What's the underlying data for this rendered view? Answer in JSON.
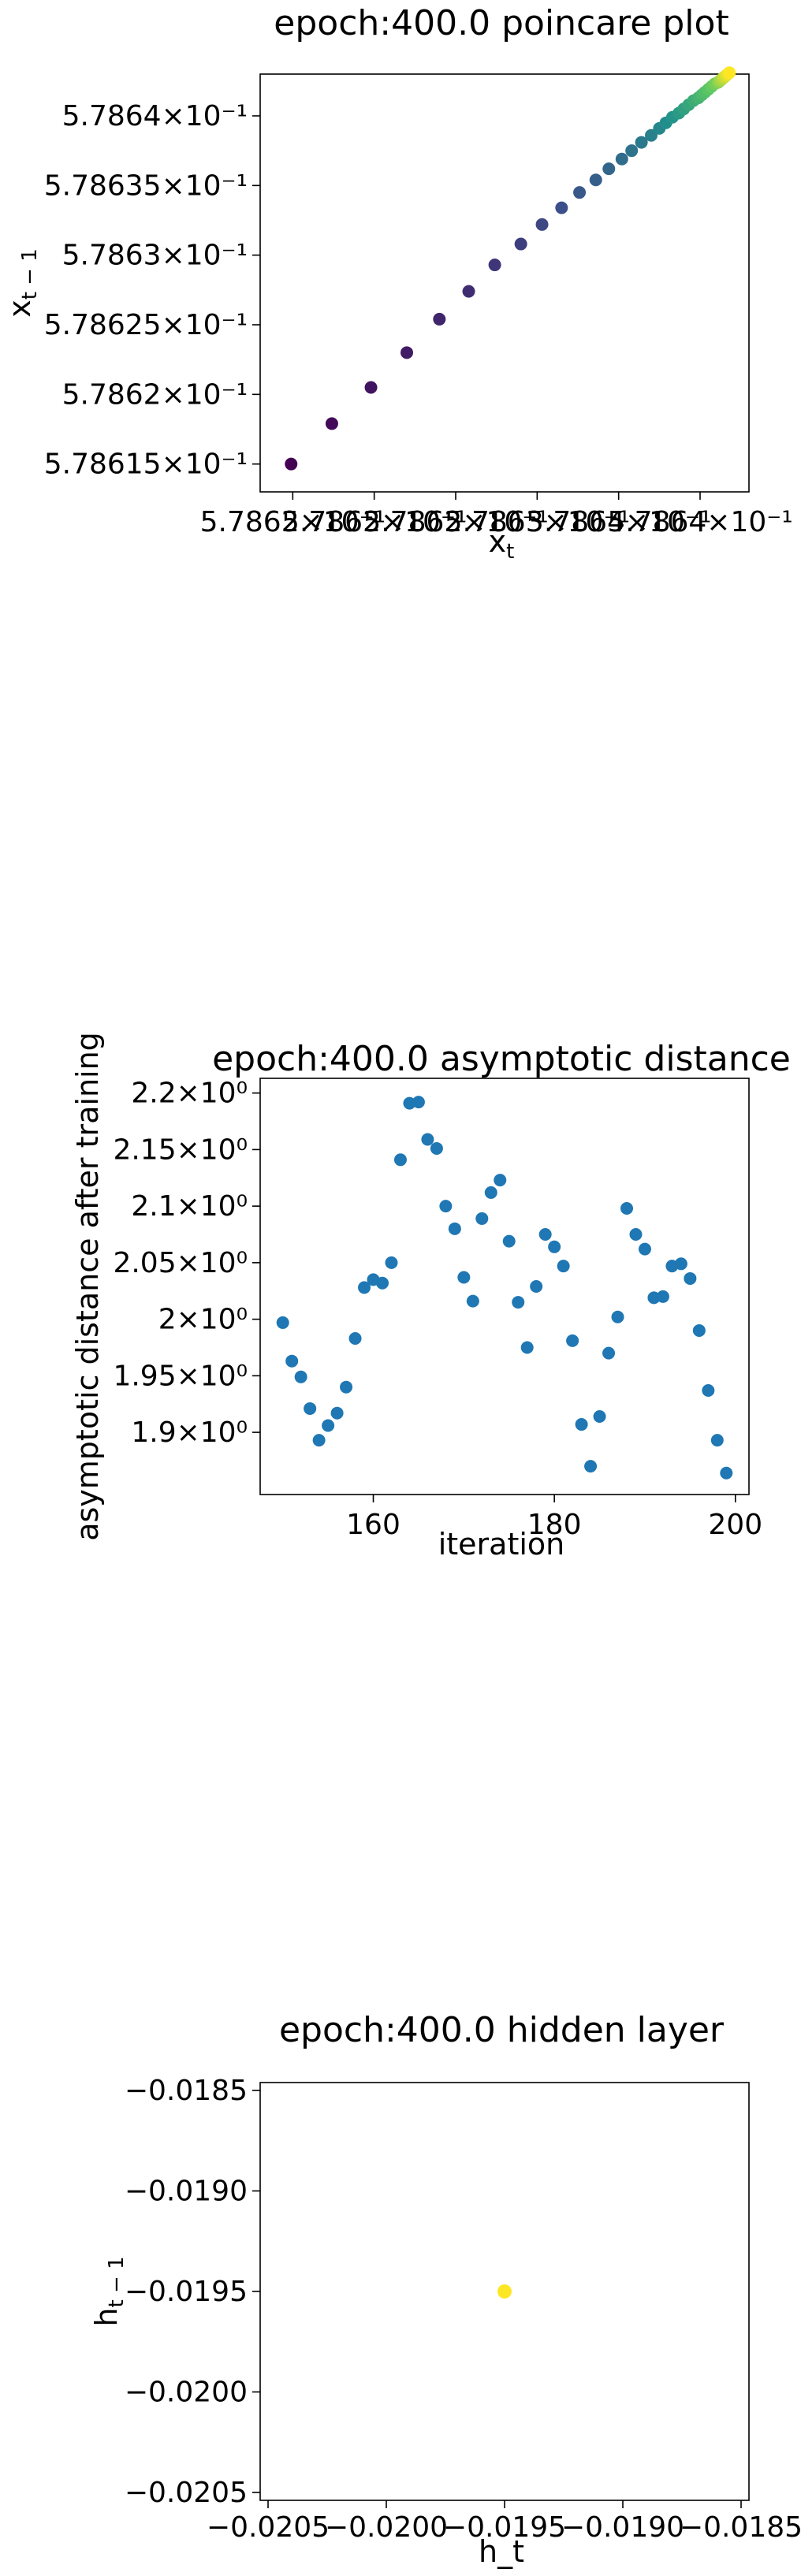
{
  "chart_data": [
    {
      "type": "scatter",
      "title": "epoch:400.0 poincare plot",
      "xlabel_base": "x",
      "xlabel_sub": "t",
      "ylabel_base": "x",
      "ylabel_sub": "t − 1",
      "xlim": [
        0.578613,
        0.578643
      ],
      "ylim": [
        0.578613,
        0.578643
      ],
      "xtick_labels": [
        {
          "v": 0.578615,
          "label": "5.7862×10⁻¹"
        },
        {
          "v": 0.57862,
          "label": "5.7862×10⁻¹"
        },
        {
          "v": 0.578625,
          "label": "5.7862×10⁻¹"
        },
        {
          "v": 0.57863,
          "label": "5.7863×10⁻¹"
        },
        {
          "v": 0.578635,
          "label": "5.7864×10⁻¹"
        },
        {
          "v": 0.57864,
          "label": "5.7864×10⁻¹"
        }
      ],
      "ytick_labels": [
        {
          "v": 0.578615,
          "label": "5.78615×10⁻¹"
        },
        {
          "v": 0.57862,
          "label": "5.7862×10⁻¹"
        },
        {
          "v": 0.578625,
          "label": "5.78625×10⁻¹"
        },
        {
          "v": 0.57863,
          "label": "5.7863×10⁻¹"
        },
        {
          "v": 0.578635,
          "label": "5.78635×10⁻¹"
        },
        {
          "v": 0.57864,
          "label": "5.7864×10⁻¹"
        }
      ],
      "colormap": [
        "#440154",
        "#3b528b",
        "#21918c",
        "#5ec962",
        "#fde725"
      ],
      "points": [
        {
          "x": 0.5786149,
          "y": 0.578615
        },
        {
          "x": 0.5786174,
          "y": 0.5786179
        },
        {
          "x": 0.5786198,
          "y": 0.5786205
        },
        {
          "x": 0.578622,
          "y": 0.578623
        },
        {
          "x": 0.578624,
          "y": 0.5786254
        },
        {
          "x": 0.5786258,
          "y": 0.5786274
        },
        {
          "x": 0.5786274,
          "y": 0.5786293
        },
        {
          "x": 0.578629,
          "y": 0.5786308
        },
        {
          "x": 0.5786303,
          "y": 0.5786322
        },
        {
          "x": 0.5786315,
          "y": 0.5786334
        },
        {
          "x": 0.5786326,
          "y": 0.5786345
        },
        {
          "x": 0.5786336,
          "y": 0.5786354
        },
        {
          "x": 0.5786344,
          "y": 0.5786362
        },
        {
          "x": 0.5786352,
          "y": 0.5786369
        },
        {
          "x": 0.5786358,
          "y": 0.5786375
        },
        {
          "x": 0.5786364,
          "y": 0.5786381
        },
        {
          "x": 0.578637,
          "y": 0.5786386
        },
        {
          "x": 0.5786375,
          "y": 0.5786391
        },
        {
          "x": 0.5786379,
          "y": 0.5786395
        },
        {
          "x": 0.5786383,
          "y": 0.5786399
        },
        {
          "x": 0.5786387,
          "y": 0.5786402
        },
        {
          "x": 0.578639,
          "y": 0.5786405
        },
        {
          "x": 0.5786393,
          "y": 0.5786408
        },
        {
          "x": 0.5786396,
          "y": 0.5786411
        },
        {
          "x": 0.5786399,
          "y": 0.5786413
        },
        {
          "x": 0.5786401,
          "y": 0.5786415
        },
        {
          "x": 0.5786403,
          "y": 0.5786417
        },
        {
          "x": 0.5786405,
          "y": 0.5786419
        },
        {
          "x": 0.5786407,
          "y": 0.5786421
        },
        {
          "x": 0.5786409,
          "y": 0.5786423
        },
        {
          "x": 0.5786411,
          "y": 0.5786424
        },
        {
          "x": 0.5786412,
          "y": 0.5786425
        },
        {
          "x": 0.5786413,
          "y": 0.5786426
        },
        {
          "x": 0.5786414,
          "y": 0.5786427
        },
        {
          "x": 0.5786415,
          "y": 0.5786428
        },
        {
          "x": 0.5786416,
          "y": 0.5786429
        },
        {
          "x": 0.5786417,
          "y": 0.578643
        },
        {
          "x": 0.5786418,
          "y": 0.5786431
        }
      ]
    },
    {
      "type": "scatter",
      "title": "epoch:400.0 asymptotic distance",
      "xlabel": "iteration",
      "ylabel": "asymptotic distance after training",
      "xlim": [
        147.5,
        201.5
      ],
      "ylim": [
        1.845,
        2.213
      ],
      "xticks": [
        160,
        180,
        200
      ],
      "yticks": [
        {
          "v": 1.9,
          "label": "1.9×10⁰"
        },
        {
          "v": 1.95,
          "label": "1.95×10⁰"
        },
        {
          "v": 2.0,
          "label": "2×10⁰"
        },
        {
          "v": 2.05,
          "label": "2.05×10⁰"
        },
        {
          "v": 2.1,
          "label": "2.1×10⁰"
        },
        {
          "v": 2.15,
          "label": "2.15×10⁰"
        },
        {
          "v": 2.2,
          "label": "2.2×10⁰"
        }
      ],
      "color": "#1f77b4",
      "x": [
        150,
        151,
        152,
        153,
        154,
        155,
        156,
        157,
        158,
        159,
        160,
        161,
        162,
        163,
        164,
        165,
        166,
        167,
        168,
        169,
        170,
        171,
        172,
        173,
        174,
        175,
        176,
        177,
        178,
        179,
        180,
        181,
        182,
        183,
        184,
        185,
        186,
        187,
        188,
        189,
        190,
        191,
        192,
        193,
        194,
        195,
        196,
        197,
        198,
        199
      ],
      "y": [
        1.997,
        1.963,
        1.949,
        1.921,
        1.893,
        1.906,
        1.917,
        1.94,
        1.983,
        2.028,
        2.035,
        2.032,
        2.05,
        2.141,
        2.191,
        2.192,
        2.159,
        2.151,
        2.1,
        2.08,
        2.037,
        2.016,
        2.089,
        2.112,
        2.123,
        2.069,
        2.015,
        1.975,
        2.029,
        2.075,
        2.064,
        2.047,
        1.981,
        1.907,
        1.87,
        1.914,
        1.97,
        2.002,
        2.098,
        2.075,
        2.062,
        2.019,
        2.02,
        2.047,
        2.049,
        2.036,
        1.99,
        1.937,
        1.893,
        1.864
      ]
    },
    {
      "type": "scatter",
      "title": "epoch:400.0 hidden layer",
      "xlabel": "h_t",
      "ylabel_base": "h",
      "ylabel_sub": "t − 1",
      "xlim": [
        -0.0205,
        -0.0185
      ],
      "ylim": [
        -0.0205,
        -0.0185
      ],
      "ticks": [
        {
          "v": -0.0205,
          "label": "−0.0205"
        },
        {
          "v": -0.02,
          "label": "−0.0200"
        },
        {
          "v": -0.0195,
          "label": "−0.0195"
        },
        {
          "v": -0.019,
          "label": "−0.0190"
        },
        {
          "v": -0.0185,
          "label": "−0.0185"
        }
      ],
      "color": "#fde725",
      "points": [
        {
          "x": -0.0195,
          "y": -0.0195
        }
      ]
    }
  ]
}
